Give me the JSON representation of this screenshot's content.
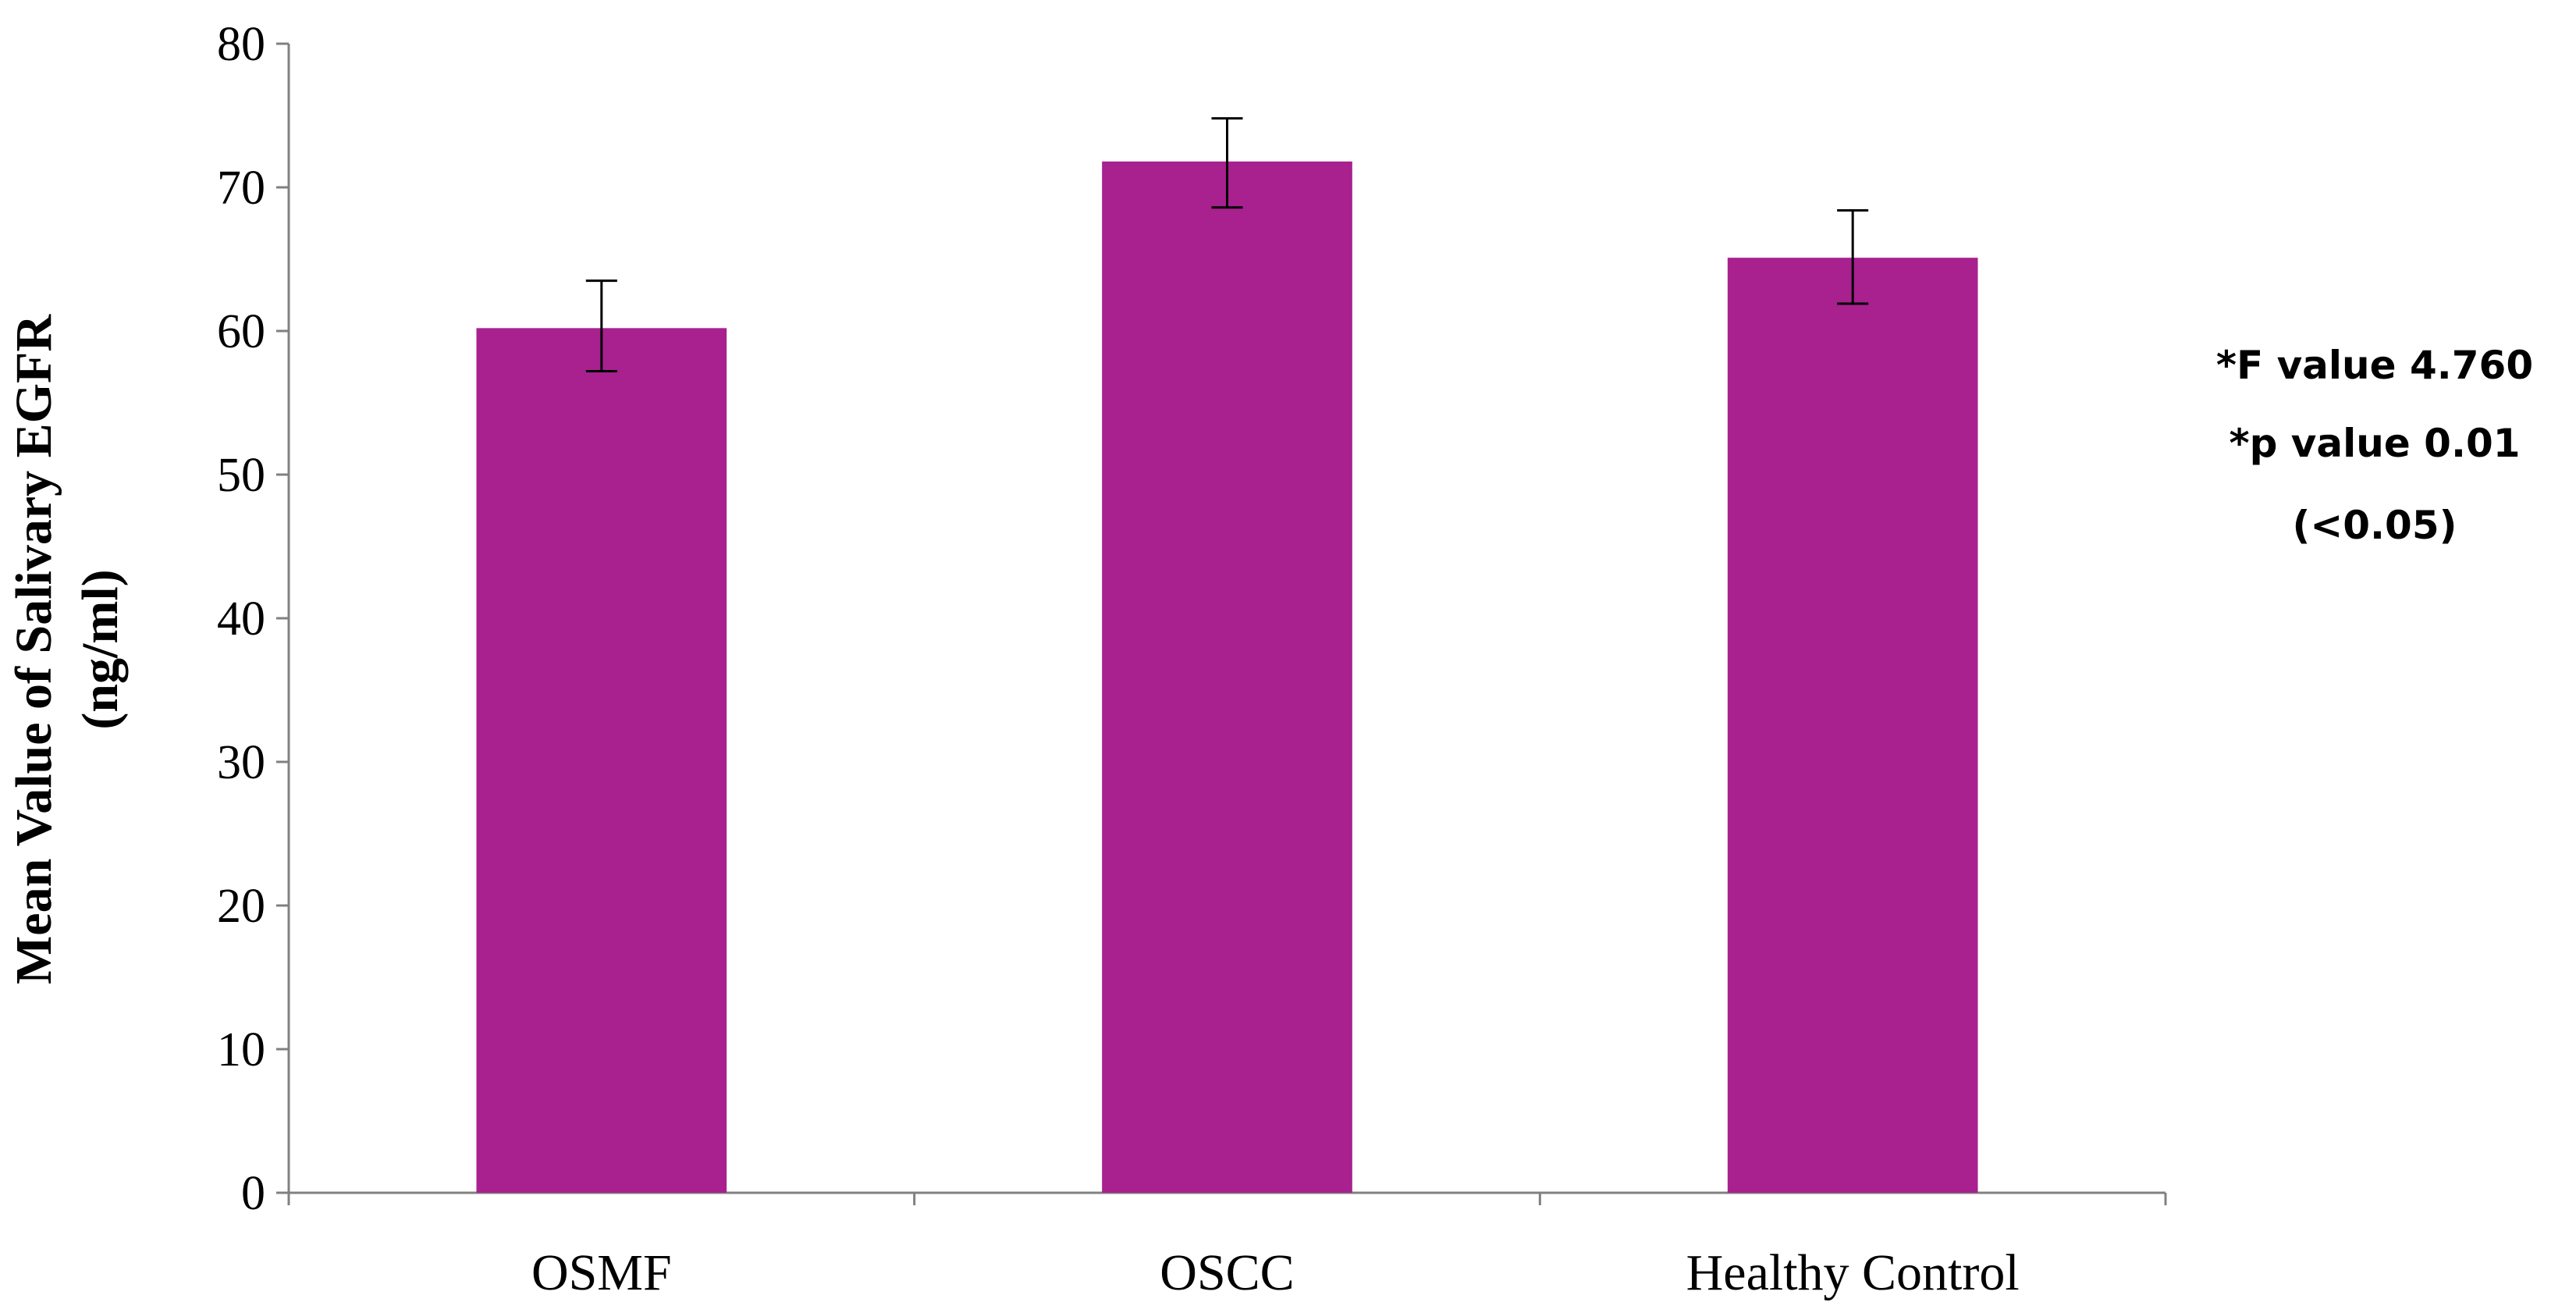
{
  "chart_data": {
    "type": "bar",
    "categories": [
      "OSMF",
      "OSCC",
      "Healthy Control"
    ],
    "values": [
      60.2,
      71.8,
      65.1
    ],
    "error_low": [
      57.2,
      68.6,
      61.9
    ],
    "error_high": [
      63.5,
      74.8,
      68.4
    ],
    "title": "",
    "xlabel": "",
    "ylabel_lines": [
      "Mean Value of Salivary  EGFR",
      "(ng/ml)"
    ],
    "ylim": [
      0,
      80
    ],
    "yticks": [
      0,
      10,
      20,
      30,
      40,
      50,
      60,
      70,
      80
    ],
    "grid": false,
    "legend": "none",
    "bar_color": "#a8218e",
    "annotations": [
      "*F value 4.760",
      "*p value 0.01",
      "(<0.05)"
    ]
  }
}
